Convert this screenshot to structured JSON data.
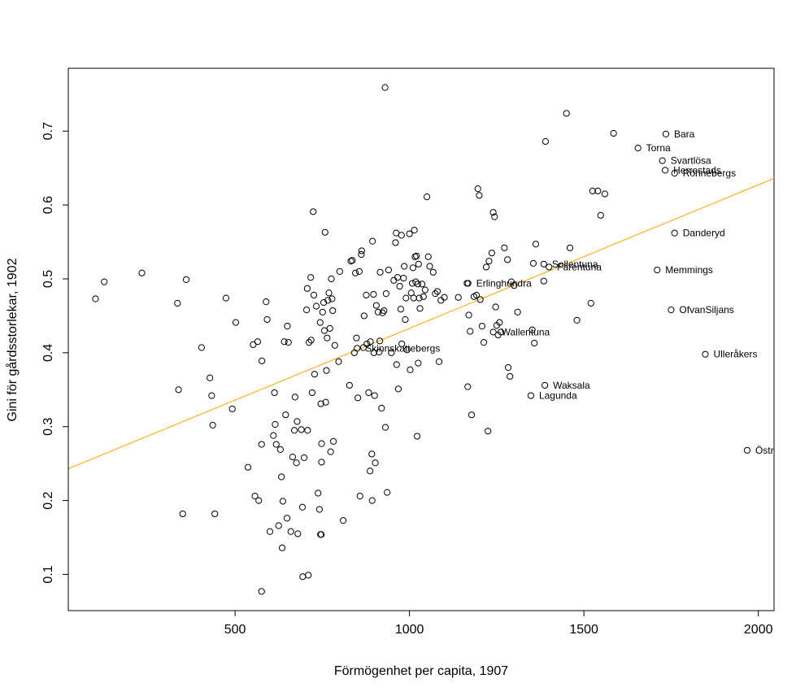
{
  "chart_data": {
    "type": "scatter",
    "title": "",
    "xlabel": "Förmögenhet per capita, 1907",
    "ylabel": "Gini för gårdsstorlekar, 1902",
    "xlim": [
      22,
      2045
    ],
    "ylim": [
      0.051,
      0.785
    ],
    "x_ticks": [
      500,
      1000,
      1500,
      2000
    ],
    "y_ticks": [
      0.1,
      0.2,
      0.3,
      0.4,
      0.5,
      0.6,
      0.7
    ],
    "x_tick_labels": [
      "500",
      "1000",
      "1500",
      "2000"
    ],
    "y_tick_labels": [
      "0.1",
      "0.2",
      "0.3",
      "0.4",
      "0.5",
      "0.6",
      "0.7"
    ],
    "grid": false,
    "fit_line": {
      "color": "#FFA500",
      "from": [
        22,
        0.243
      ],
      "to": [
        2045,
        0.636
      ]
    },
    "points": [
      [
        100,
        0.473
      ],
      [
        125,
        0.496
      ],
      [
        233,
        0.508
      ],
      [
        335,
        0.467
      ],
      [
        338,
        0.35
      ],
      [
        350,
        0.182
      ],
      [
        360,
        0.499
      ],
      [
        404,
        0.407
      ],
      [
        428,
        0.366
      ],
      [
        433,
        0.342
      ],
      [
        436,
        0.302
      ],
      [
        442,
        0.182
      ],
      [
        474,
        0.474
      ],
      [
        492,
        0.324
      ],
      [
        502,
        0.441
      ],
      [
        537,
        0.245
      ],
      [
        552,
        0.411
      ],
      [
        557,
        0.206
      ],
      [
        565,
        0.415
      ],
      [
        568,
        0.2
      ],
      [
        576,
        0.077
      ],
      [
        576,
        0.276
      ],
      [
        577,
        0.389
      ],
      [
        589,
        0.469
      ],
      [
        592,
        0.445
      ],
      [
        600,
        0.158
      ],
      [
        610,
        0.288
      ],
      [
        613,
        0.346
      ],
      [
        615,
        0.303
      ],
      [
        618,
        0.276
      ],
      [
        625,
        0.166
      ],
      [
        630,
        0.269
      ],
      [
        633,
        0.232
      ],
      [
        635,
        0.136
      ],
      [
        637,
        0.199
      ],
      [
        641,
        0.415
      ],
      [
        645,
        0.316
      ],
      [
        649,
        0.176
      ],
      [
        650,
        0.436
      ],
      [
        653,
        0.414
      ],
      [
        660,
        0.158
      ],
      [
        665,
        0.259
      ],
      [
        670,
        0.295
      ],
      [
        672,
        0.34
      ],
      [
        676,
        0.251
      ],
      [
        678,
        0.307
      ],
      [
        680,
        0.155
      ],
      [
        690,
        0.296
      ],
      [
        693,
        0.191
      ],
      [
        694,
        0.097
      ],
      [
        698,
        0.258
      ],
      [
        705,
        0.458
      ],
      [
        707,
        0.487
      ],
      [
        708,
        0.295
      ],
      [
        710,
        0.099
      ],
      [
        712,
        0.414
      ],
      [
        717,
        0.502
      ],
      [
        718,
        0.417
      ],
      [
        721,
        0.346
      ],
      [
        724,
        0.591
      ],
      [
        726,
        0.478
      ],
      [
        728,
        0.371
      ],
      [
        733,
        0.463
      ],
      [
        738,
        0.21
      ],
      [
        742,
        0.188
      ],
      [
        744,
        0.441
      ],
      [
        745,
        0.154
      ],
      [
        746,
        0.331
      ],
      [
        747,
        0.154
      ],
      [
        748,
        0.277
      ],
      [
        748,
        0.252
      ],
      [
        751,
        0.455
      ],
      [
        754,
        0.468
      ],
      [
        756,
        0.43
      ],
      [
        758,
        0.563
      ],
      [
        760,
        0.333
      ],
      [
        762,
        0.376
      ],
      [
        764,
        0.42
      ],
      [
        766,
        0.471
      ],
      [
        769,
        0.481
      ],
      [
        772,
        0.433
      ],
      [
        774,
        0.266
      ],
      [
        776,
        0.5
      ],
      [
        778,
        0.473
      ],
      [
        780,
        0.457
      ],
      [
        782,
        0.28
      ],
      [
        786,
        0.41
      ],
      [
        797,
        0.388
      ],
      [
        800,
        0.51
      ],
      [
        810,
        0.173
      ],
      [
        828,
        0.356
      ],
      [
        832,
        0.524
      ],
      [
        836,
        0.525
      ],
      [
        842,
        0.4
      ],
      [
        845,
        0.508
      ],
      [
        848,
        0.42
      ],
      [
        852,
        0.339
      ],
      [
        856,
        0.51
      ],
      [
        858,
        0.206
      ],
      [
        862,
        0.533
      ],
      [
        863,
        0.538
      ],
      [
        868,
        0.407
      ],
      [
        870,
        0.45
      ],
      [
        876,
        0.478
      ],
      [
        878,
        0.412
      ],
      [
        883,
        0.346
      ],
      [
        887,
        0.24
      ],
      [
        888,
        0.415
      ],
      [
        892,
        0.263
      ],
      [
        893,
        0.2
      ],
      [
        894,
        0.551
      ],
      [
        897,
        0.479
      ],
      [
        898,
        0.4
      ],
      [
        900,
        0.342
      ],
      [
        902,
        0.251
      ],
      [
        905,
        0.464
      ],
      [
        910,
        0.455
      ],
      [
        913,
        0.401
      ],
      [
        915,
        0.416
      ],
      [
        916,
        0.509
      ],
      [
        920,
        0.325
      ],
      [
        923,
        0.454
      ],
      [
        927,
        0.457
      ],
      [
        930,
        0.759
      ],
      [
        931,
        0.299
      ],
      [
        933,
        0.48
      ],
      [
        936,
        0.211
      ],
      [
        940,
        0.512
      ],
      [
        948,
        0.4
      ],
      [
        955,
        0.498
      ],
      [
        960,
        0.549
      ],
      [
        962,
        0.562
      ],
      [
        963,
        0.384
      ],
      [
        966,
        0.502
      ],
      [
        968,
        0.351
      ],
      [
        972,
        0.49
      ],
      [
        975,
        0.459
      ],
      [
        977,
        0.559
      ],
      [
        978,
        0.412
      ],
      [
        983,
        0.501
      ],
      [
        985,
        0.517
      ],
      [
        988,
        0.445
      ],
      [
        990,
        0.474
      ],
      [
        993,
        0.404
      ],
      [
        1000,
        0.561
      ],
      [
        1002,
        0.377
      ],
      [
        1005,
        0.481
      ],
      [
        1008,
        0.494
      ],
      [
        1010,
        0.515
      ],
      [
        1012,
        0.474
      ],
      [
        1014,
        0.566
      ],
      [
        1016,
        0.53
      ],
      [
        1018,
        0.496
      ],
      [
        1020,
        0.531
      ],
      [
        1022,
        0.287
      ],
      [
        1024,
        0.493
      ],
      [
        1025,
        0.386
      ],
      [
        1026,
        0.52
      ],
      [
        1028,
        0.474
      ],
      [
        1030,
        0.46
      ],
      [
        1036,
        0.493
      ],
      [
        1040,
        0.476
      ],
      [
        1045,
        0.485
      ],
      [
        1050,
        0.611
      ],
      [
        1054,
        0.53
      ],
      [
        1058,
        0.517
      ],
      [
        1068,
        0.509
      ],
      [
        1074,
        0.48
      ],
      [
        1080,
        0.483
      ],
      [
        1085,
        0.388
      ],
      [
        1090,
        0.471
      ],
      [
        1100,
        0.475
      ],
      [
        1140,
        0.475
      ],
      [
        1165,
        0.494
      ],
      [
        1167,
        0.354
      ],
      [
        1170,
        0.451
      ],
      [
        1174,
        0.429
      ],
      [
        1178,
        0.316
      ],
      [
        1185,
        0.476
      ],
      [
        1192,
        0.478
      ],
      [
        1196,
        0.622
      ],
      [
        1200,
        0.613
      ],
      [
        1203,
        0.472
      ],
      [
        1208,
        0.436
      ],
      [
        1213,
        0.414
      ],
      [
        1220,
        0.516
      ],
      [
        1225,
        0.294
      ],
      [
        1228,
        0.524
      ],
      [
        1236,
        0.535
      ],
      [
        1240,
        0.59
      ],
      [
        1244,
        0.584
      ],
      [
        1247,
        0.462
      ],
      [
        1250,
        0.437
      ],
      [
        1254,
        0.424
      ],
      [
        1258,
        0.441
      ],
      [
        1262,
        0.428
      ],
      [
        1272,
        0.542
      ],
      [
        1281,
        0.526
      ],
      [
        1283,
        0.38
      ],
      [
        1288,
        0.368
      ],
      [
        1292,
        0.496
      ],
      [
        1300,
        0.491
      ],
      [
        1310,
        0.455
      ],
      [
        1352,
        0.431
      ],
      [
        1355,
        0.521
      ],
      [
        1358,
        0.413
      ],
      [
        1362,
        0.547
      ],
      [
        1385,
        0.497
      ],
      [
        1390,
        0.686
      ],
      [
        1450,
        0.724
      ],
      [
        1460,
        0.542
      ],
      [
        1480,
        0.444
      ],
      [
        1520,
        0.467
      ],
      [
        1525,
        0.619
      ],
      [
        1540,
        0.619
      ],
      [
        1548,
        0.586
      ],
      [
        1560,
        0.615
      ],
      [
        1585,
        0.697
      ]
    ],
    "labeled_points": [
      {
        "x": 1735,
        "y": 0.696,
        "label": "Bara"
      },
      {
        "x": 1655,
        "y": 0.677,
        "label": "Torna"
      },
      {
        "x": 1725,
        "y": 0.66,
        "label": "Svartlösa"
      },
      {
        "x": 1733,
        "y": 0.647,
        "label": "Herrestads"
      },
      {
        "x": 1760,
        "y": 0.643,
        "label": "Rönnebergs"
      },
      {
        "x": 1760,
        "y": 0.562,
        "label": "Danderyd"
      },
      {
        "x": 1385,
        "y": 0.52,
        "label": "Sollentuna"
      },
      {
        "x": 1400,
        "y": 0.516,
        "label": "Färentuna"
      },
      {
        "x": 1710,
        "y": 0.512,
        "label": "Memmings"
      },
      {
        "x": 1168,
        "y": 0.494,
        "label": "Erlinghundra"
      },
      {
        "x": 1750,
        "y": 0.458,
        "label": "OfvanSiljans"
      },
      {
        "x": 1240,
        "y": 0.428,
        "label": "Wallentuna"
      },
      {
        "x": 1848,
        "y": 0.398,
        "label": "Ulleråkers"
      },
      {
        "x": 850,
        "y": 0.406,
        "label": "Skinnskattebergs"
      },
      {
        "x": 1388,
        "y": 0.356,
        "label": "Waksala"
      },
      {
        "x": 1348,
        "y": 0.342,
        "label": "Lagunda"
      },
      {
        "x": 1968,
        "y": 0.268,
        "label": "Östr"
      }
    ]
  }
}
